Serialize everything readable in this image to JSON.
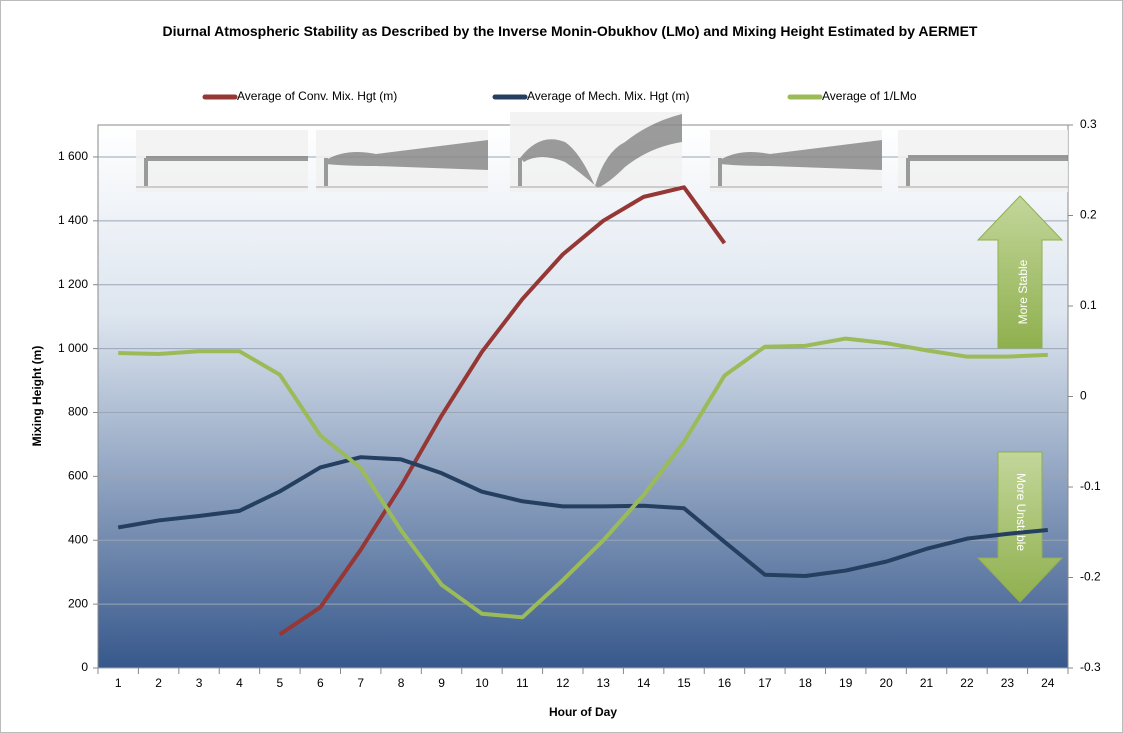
{
  "chart_data": {
    "type": "line",
    "title": "Diurnal Atmospheric Stability as Described by the Inverse Monin-Obukhov (LMo) and Mixing Height Estimated by AERMET",
    "x_label": "Hour of Day",
    "y_label": "Mixing Height (m)",
    "categories": [
      "1",
      "2",
      "3",
      "4",
      "5",
      "6",
      "7",
      "8",
      "9",
      "10",
      "11",
      "12",
      "13",
      "14",
      "15",
      "16",
      "17",
      "18",
      "19",
      "20",
      "21",
      "22",
      "23",
      "24"
    ],
    "series": [
      {
        "name": "Average of Conv. Mix. Hgt (m)",
        "color": "#953735",
        "values": [
          null,
          null,
          null,
          null,
          105,
          190,
          370,
          570,
          790,
          990,
          1155,
          1295,
          1400,
          1475,
          1505,
          1330,
          null,
          null,
          null,
          null,
          null,
          null,
          null,
          null
        ]
      },
      {
        "name": "Average of Mech. Mix. Hgt (m)",
        "color": "#243f60",
        "values": [
          440,
          462,
          476,
          492,
          553,
          628,
          660,
          653,
          610,
          552,
          522,
          506,
          506,
          508,
          500,
          395,
          292,
          288,
          305,
          333,
          373,
          405,
          420,
          432
        ]
      },
      {
        "name": "Average of 1/LMo",
        "color": "#9bbb59",
        "axis": "y2",
        "values": [
          0.048,
          0.047,
          0.05,
          0.05,
          0.024,
          -0.043,
          -0.079,
          -0.148,
          -0.208,
          -0.24,
          -0.244,
          -0.203,
          -0.159,
          -0.109,
          -0.05,
          0.023,
          0.055,
          0.056,
          0.064,
          0.059,
          0.051,
          0.044,
          0.044,
          0.046
        ]
      }
    ],
    "ylim": [
      0,
      1700
    ],
    "yticks": [
      0,
      200,
      400,
      600,
      800,
      {
        "value": 1000,
        "label": "1 000"
      },
      {
        "value": 1200,
        "label": "1 200"
      },
      {
        "value": 1400,
        "label": "1 400"
      },
      {
        "value": 1600,
        "label": "1 600"
      }
    ],
    "y2lim": [
      -0.3,
      0.3
    ],
    "y2ticks": [
      -0.3,
      -0.2,
      -0.1,
      0,
      0.1,
      0.2,
      0.3
    ],
    "grid": true,
    "legend": "top",
    "annotations": [
      "More Stable",
      "More Unstable"
    ]
  }
}
